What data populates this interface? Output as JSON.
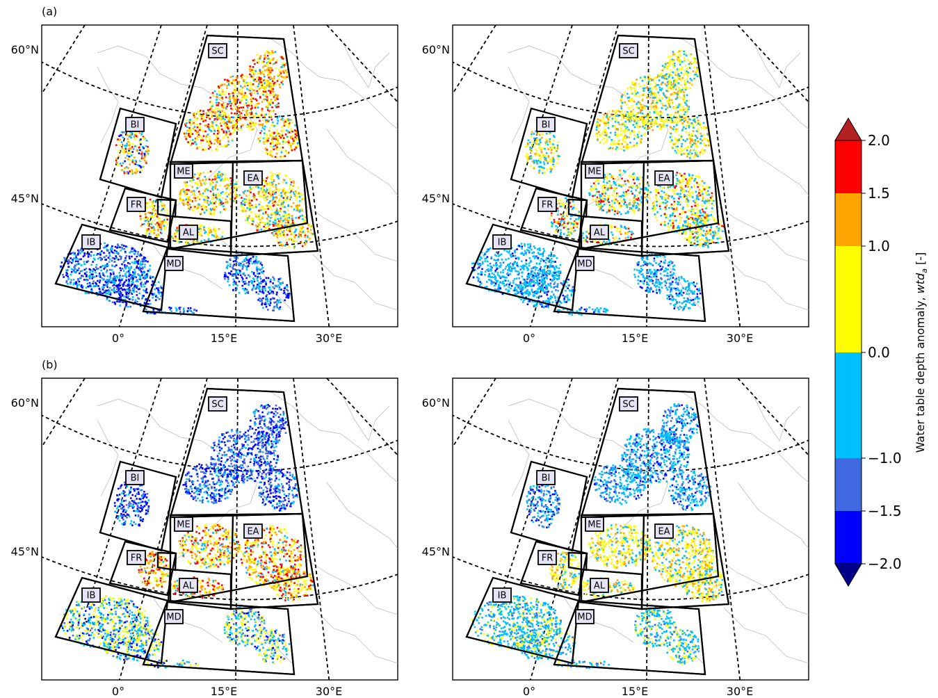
{
  "figure": {
    "row_labels": [
      "(a)",
      "(b)"
    ],
    "lat_labels": [
      "60°N",
      "45°N"
    ],
    "lon_labels": [
      "0°",
      "15°E",
      "30°E"
    ],
    "regions": [
      "SC",
      "BI",
      "ME",
      "EA",
      "FR",
      "AL",
      "IB",
      "MD"
    ]
  },
  "colorbar": {
    "label_prefix": "Water table depth anomaly, ",
    "label_var": "wtd",
    "label_sub": "a",
    "label_suffix": " [-]",
    "ticks": [
      "2.0",
      "1.5",
      "1.0",
      "0.0",
      "−1.0",
      "−1.5",
      "−2.0"
    ],
    "levels": [
      {
        "from": 1.5,
        "to": 2.0,
        "color": "#fe0000"
      },
      {
        "from": 1.0,
        "to": 1.5,
        "color": "#ffa500"
      },
      {
        "from": 0.0,
        "to": 1.0,
        "color": "#ffff00"
      },
      {
        "from": -1.0,
        "to": 0.0,
        "color": "#00bfff"
      },
      {
        "from": -1.5,
        "to": -1.0,
        "color": "#4169e1"
      },
      {
        "from": -2.0,
        "to": -1.5,
        "color": "#0000ff"
      }
    ],
    "extend_max_color": "#b22222",
    "extend_min_color": "#00008b"
  },
  "panels": [
    {
      "id": "a-left",
      "pattern": "wet-north"
    },
    {
      "id": "a-right",
      "pattern": "moderate-wet"
    },
    {
      "id": "b-left",
      "pattern": "dry-north"
    },
    {
      "id": "b-right",
      "pattern": "moderate-dry"
    }
  ]
}
